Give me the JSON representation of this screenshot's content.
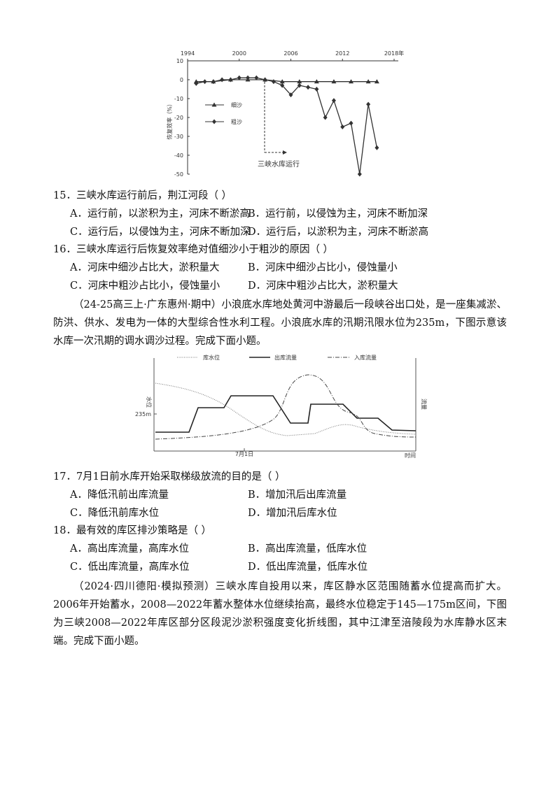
{
  "figure1": {
    "xticks": [
      1994,
      2000,
      2006,
      2012,
      {
        "value": 2018,
        "label": "2018年"
      }
    ],
    "xlim": [
      1994,
      2018
    ],
    "ylim": [
      -50,
      10
    ],
    "yticks": [
      10,
      0,
      -10,
      -20,
      -30,
      -40,
      -50
    ],
    "y_label": "恢复效率（%）",
    "annotation": "三峡水库运行",
    "series": [
      {
        "name": "细沙",
        "marker": "triangle",
        "color": "#333333",
        "x": [
          1995,
          1997,
          1999,
          2001,
          2003,
          2005,
          2007,
          2009,
          2011,
          2013,
          2015,
          2016
        ],
        "values": [
          -1,
          -1,
          0,
          0,
          0,
          -1,
          -1,
          -1,
          -1,
          -1,
          -1,
          -1
        ]
      },
      {
        "name": "粗沙",
        "marker": "diamond",
        "color": "#333333",
        "x": [
          1995,
          1996,
          1997,
          1998,
          1999,
          2000,
          2001,
          2002,
          2003,
          2004,
          2005,
          2006,
          2007,
          2008,
          2009,
          2010,
          2011,
          2012,
          2013,
          2014,
          2015,
          2016
        ],
        "values": [
          -2,
          -1,
          -1,
          0,
          0,
          1,
          1,
          1,
          0,
          -1,
          -3,
          -8,
          -3,
          -4,
          -5,
          -20,
          -11,
          -25,
          -23,
          -50,
          -13,
          -36
        ]
      }
    ]
  },
  "q15": {
    "stem": "15．三峡水库运行前后，荆江河段（ ）",
    "options": [
      "A．运行前，以淤积为主，河床不断淤高",
      "B．运行前，以侵蚀为主，河床不断加深",
      "C．运行后，以侵蚀为主，河床不断加深",
      "D．运行后，以淤积为主，河床不断淤高"
    ]
  },
  "q16": {
    "stem": "16．三峡水库运行后恢复效率绝对值细沙小于粗沙的原因（ ）",
    "options": [
      "A．河床中细沙占比大，淤积量大",
      "B．河床中细沙占比小，侵蚀量小",
      "C．河床中粗沙占比小，侵蚀量小",
      "D．河床中粗沙占比大，淤积量大"
    ]
  },
  "passage1": "（24-25高三上·广东惠州·期中）小浪底水库地处黄河中游最后一段峡谷出口处，是一座集减淤、防洪、供水、发电为一体的大型综合性水利工程。小浪底水库的汛期汛限水位为235m，下图示意该水库一次汛期的调水调沙过程。完成下面小题。",
  "figure2": {
    "legend": [
      "库水位",
      "出库流量",
      "入库流量"
    ],
    "y_label": "水位",
    "y2_label": "流量",
    "level_label": "235m",
    "date_label": "7月1日",
    "x_label": "时间"
  },
  "q17": {
    "stem": "17．7月1日前水库开始采取梯级放流的目的是（ ）",
    "options": [
      "A．降低汛前出库流量",
      "B．增加汛后出库流量",
      "C．降低汛前库水位",
      "D．增加汛后库水位"
    ]
  },
  "q18": {
    "stem": "18．最有效的库区排沙策略是（ ）",
    "options": [
      "A．高出库流量，高库水位",
      "B．高出库流量，低库水位",
      "C．低出库流量，高库水位",
      "D．低出库流量，低库水位"
    ]
  },
  "passage2": "（2024·四川德阳·模拟预测）三峡水库自投用以来，库区静水区范围随蓄水位提高而扩大。2006年开始蓄水，2008—2022年蓄水整体水位继续抬高，最终水位稳定于145—175m区间，下图为三峡2008—2022年库区部分区段泥沙淤积强度变化折线图，其中江津至涪陵段为水库静水区末端。完成下面小题。"
}
